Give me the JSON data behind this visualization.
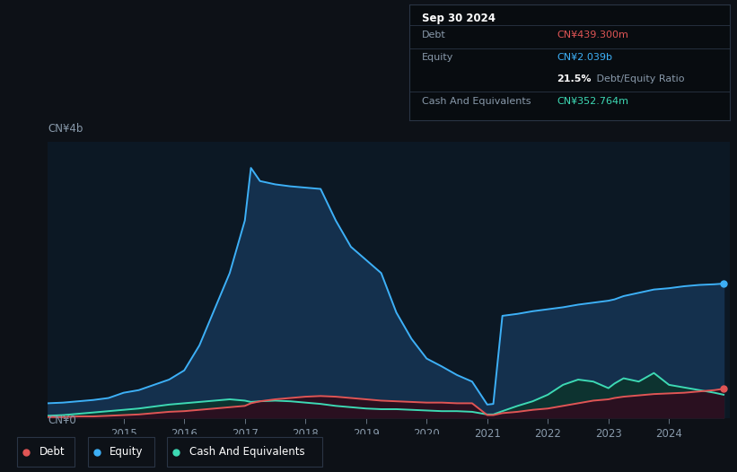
{
  "bg_color": "#0d1117",
  "plot_bg_color": "#0c1824",
  "ylabel_top": "CN¥4b",
  "ylabel_bottom": "CN¥0",
  "x_labels": [
    "2015",
    "2016",
    "2017",
    "2018",
    "2019",
    "2020",
    "2021",
    "2022",
    "2023",
    "2024"
  ],
  "x_ticks": [
    2015,
    2016,
    2017,
    2018,
    2019,
    2020,
    2021,
    2022,
    2023,
    2024
  ],
  "legend": [
    {
      "label": "Debt",
      "color": "#e05555"
    },
    {
      "label": "Equity",
      "color": "#3db0f7"
    },
    {
      "label": "Cash And Equivalents",
      "color": "#3dd9b4"
    }
  ],
  "equity_line_color": "#3db0f7",
  "debt_line_color": "#e05555",
  "cash_line_color": "#3dd9b4",
  "equity_fill_color": "#14304d",
  "cash_fill_color": "#0d3330",
  "debt_fill_color": "#2a1020",
  "grid_color": "#1a2a3a",
  "tooltip_bg": "#080c10",
  "tooltip_border": "#2a3545",
  "title_text": "Sep 30 2024",
  "debt_label": "Debt",
  "debt_value": "CN¥439.300m",
  "equity_label": "Equity",
  "equity_value": "CN¥2.039b",
  "ratio_pct": "21.5%",
  "ratio_text": " Debt/Equity Ratio",
  "cash_label": "Cash And Equivalents",
  "cash_value": "CN¥352.764m",
  "xlim": [
    2013.75,
    2025.0
  ],
  "ylim": [
    0,
    4.2
  ],
  "years": [
    2013.75,
    2014.0,
    2014.25,
    2014.5,
    2014.75,
    2015.0,
    2015.25,
    2015.5,
    2015.75,
    2016.0,
    2016.25,
    2016.5,
    2016.75,
    2017.0,
    2017.1,
    2017.25,
    2017.5,
    2017.75,
    2018.0,
    2018.25,
    2018.5,
    2018.75,
    2019.0,
    2019.25,
    2019.5,
    2019.75,
    2020.0,
    2020.25,
    2020.5,
    2020.75,
    2021.0,
    2021.1,
    2021.25,
    2021.5,
    2021.75,
    2022.0,
    2022.25,
    2022.5,
    2022.75,
    2023.0,
    2023.1,
    2023.25,
    2023.5,
    2023.75,
    2024.0,
    2024.25,
    2024.5,
    2024.75,
    2024.9
  ],
  "equity": [
    0.22,
    0.23,
    0.25,
    0.27,
    0.3,
    0.38,
    0.42,
    0.5,
    0.58,
    0.72,
    1.1,
    1.65,
    2.2,
    3.0,
    3.8,
    3.6,
    3.55,
    3.52,
    3.5,
    3.48,
    3.0,
    2.6,
    2.4,
    2.2,
    1.6,
    1.2,
    0.9,
    0.78,
    0.65,
    0.55,
    0.2,
    0.21,
    1.55,
    1.58,
    1.62,
    1.65,
    1.68,
    1.72,
    1.75,
    1.78,
    1.8,
    1.85,
    1.9,
    1.95,
    1.97,
    2.0,
    2.02,
    2.03,
    2.04
  ],
  "debt": [
    0.01,
    0.01,
    0.02,
    0.02,
    0.03,
    0.04,
    0.05,
    0.07,
    0.09,
    0.1,
    0.12,
    0.14,
    0.16,
    0.18,
    0.22,
    0.25,
    0.28,
    0.3,
    0.32,
    0.33,
    0.32,
    0.3,
    0.28,
    0.26,
    0.25,
    0.24,
    0.23,
    0.23,
    0.22,
    0.22,
    0.04,
    0.04,
    0.07,
    0.09,
    0.12,
    0.14,
    0.18,
    0.22,
    0.26,
    0.28,
    0.3,
    0.32,
    0.34,
    0.36,
    0.37,
    0.38,
    0.4,
    0.42,
    0.44
  ],
  "cash": [
    0.03,
    0.04,
    0.06,
    0.08,
    0.1,
    0.12,
    0.14,
    0.17,
    0.2,
    0.22,
    0.24,
    0.26,
    0.28,
    0.26,
    0.24,
    0.25,
    0.26,
    0.25,
    0.23,
    0.21,
    0.18,
    0.16,
    0.14,
    0.13,
    0.13,
    0.12,
    0.11,
    0.1,
    0.1,
    0.09,
    0.05,
    0.05,
    0.1,
    0.18,
    0.25,
    0.35,
    0.5,
    0.58,
    0.55,
    0.45,
    0.52,
    0.6,
    0.55,
    0.68,
    0.5,
    0.46,
    0.42,
    0.38,
    0.35
  ]
}
